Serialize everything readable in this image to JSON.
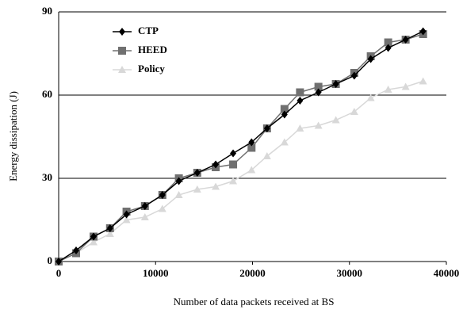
{
  "chart_data": {
    "type": "line",
    "x_label": "Number of data packets received at BS",
    "y_label": "Energy dissipation (J)",
    "x": [
      0,
      1800,
      3600,
      5300,
      7000,
      8900,
      10700,
      12400,
      14300,
      16200,
      18000,
      19900,
      21500,
      23300,
      24900,
      26800,
      28600,
      30500,
      32200,
      34000,
      35800,
      37600
    ],
    "series": [
      {
        "name": "CTP",
        "color": "#000000",
        "marker": "diamond",
        "values": [
          0,
          4,
          9,
          12,
          17,
          20,
          24,
          29,
          32,
          35,
          39,
          43,
          48,
          53,
          58,
          61,
          64,
          67,
          73,
          77,
          80,
          83
        ]
      },
      {
        "name": "HEED",
        "color": "#707070",
        "marker": "square",
        "values": [
          0,
          3,
          9,
          12,
          18,
          20,
          24,
          30,
          32,
          34,
          35,
          41,
          48,
          55,
          61,
          63,
          64,
          68,
          74,
          79,
          80,
          82
        ]
      },
      {
        "name": "Policy",
        "color": "#d8d8d8",
        "marker": "triangle",
        "values": [
          0,
          3,
          7,
          10,
          15,
          16,
          19,
          24,
          26,
          27,
          29,
          33,
          38,
          43,
          48,
          49,
          51,
          54,
          59,
          62,
          63,
          65
        ]
      }
    ],
    "xlim": [
      0,
      40000
    ],
    "xticks": [
      0,
      10000,
      20000,
      30000,
      40000
    ],
    "ylim": [
      0,
      90
    ],
    "yticks": [
      0,
      30,
      60,
      90
    ],
    "grid": true,
    "legend": "upper left"
  }
}
